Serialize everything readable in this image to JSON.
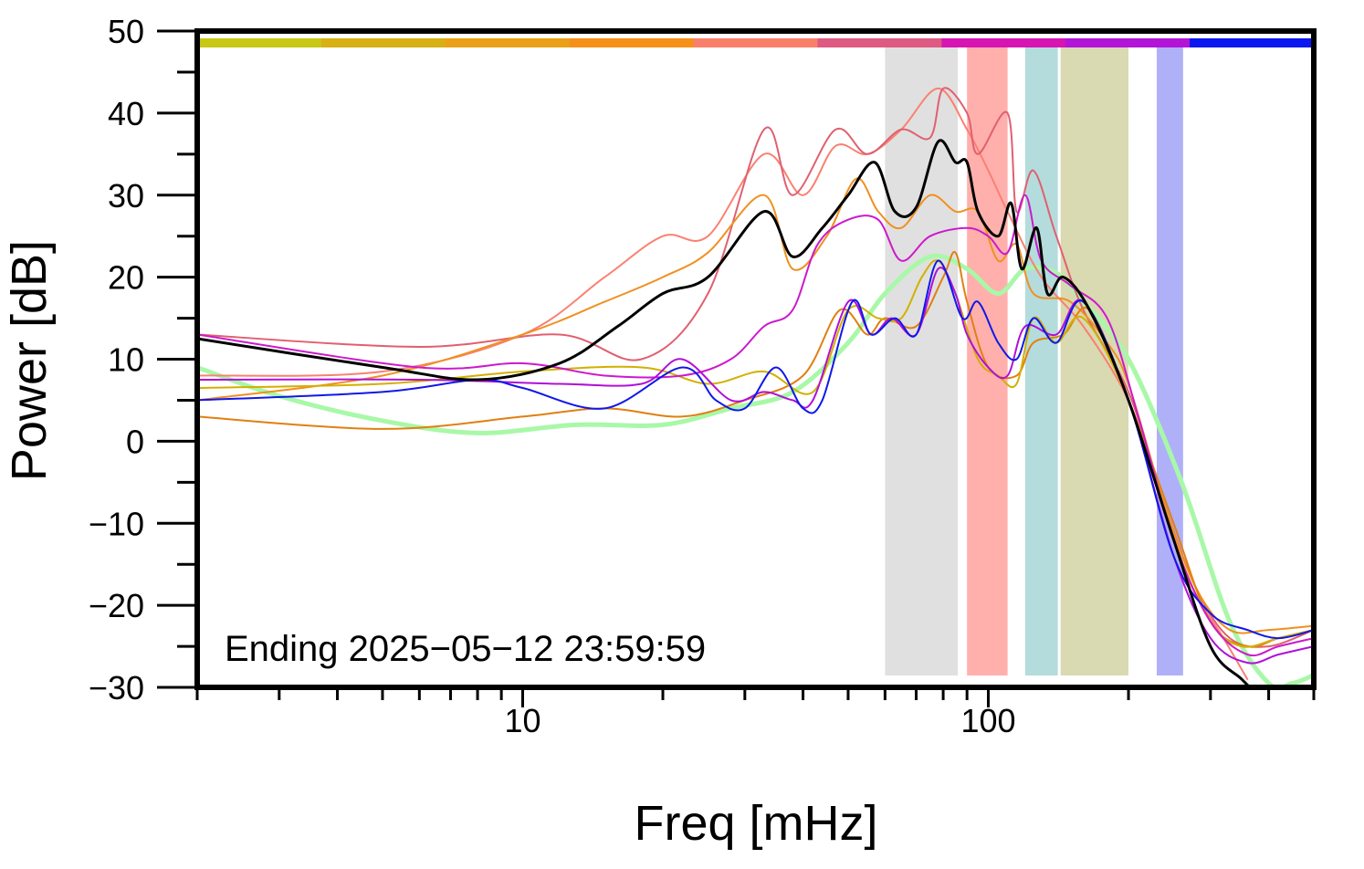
{
  "chart_data": {
    "type": "line",
    "xlabel": "Freq [mHz]",
    "ylabel": "Power [dB]",
    "x_scale": "log",
    "xlim": [
      2,
      500
    ],
    "ylim": [
      -30,
      50
    ],
    "x_tick_labels": [
      {
        "value": 10,
        "label": "10"
      },
      {
        "value": 100,
        "label": "100"
      }
    ],
    "y_ticks": [
      -30,
      -20,
      -10,
      0,
      10,
      20,
      30,
      40,
      50
    ],
    "y_tick_labels": [
      "−30",
      "−20",
      "−10",
      "0",
      "10",
      "20",
      "30",
      "40",
      "50"
    ],
    "annotation": "Ending 2025−05−12 23:59:59",
    "legend": "none",
    "grid": false,
    "color_bar": [
      "#c8c815",
      "#d7b014",
      "#eaa117",
      "#f6901a",
      "#fa7f6a",
      "#de5a82",
      "#d715b2",
      "#b215d7",
      "#0b18f0"
    ],
    "bands": [
      {
        "x0": 60,
        "x1": 86,
        "color": "#e0e0e0"
      },
      {
        "x0": 90,
        "x1": 110,
        "color": "#ffb0ac"
      },
      {
        "x0": 120,
        "x1": 141,
        "color": "#b4dcdc"
      },
      {
        "x0": 143,
        "x1": 200,
        "color": "#d9d9b2"
      },
      {
        "x0": 230,
        "x1": 262,
        "color": "#b0b0f8"
      }
    ],
    "series": [
      {
        "color": "#a8f8a8",
        "width": 5,
        "points": [
          [
            2,
            9
          ],
          [
            3,
            5.5
          ],
          [
            5,
            2.5
          ],
          [
            8,
            1
          ],
          [
            13,
            2
          ],
          [
            20,
            2
          ],
          [
            28,
            4
          ],
          [
            38,
            6
          ],
          [
            50,
            12
          ],
          [
            60,
            18
          ],
          [
            75,
            22.5
          ],
          [
            90,
            21
          ],
          [
            105,
            18
          ],
          [
            120,
            21
          ],
          [
            140,
            20.5
          ],
          [
            160,
            17
          ],
          [
            200,
            10
          ],
          [
            260,
            -5
          ],
          [
            330,
            -22
          ],
          [
            400,
            -29.5
          ],
          [
            450,
            -29.5
          ],
          [
            500,
            -28.5
          ]
        ]
      },
      {
        "color": "#fa8072",
        "width": 2,
        "points": [
          [
            2,
            8
          ],
          [
            5,
            8.5
          ],
          [
            10,
            13
          ],
          [
            15,
            20
          ],
          [
            20,
            25
          ],
          [
            25,
            25
          ],
          [
            33,
            35
          ],
          [
            40,
            30
          ],
          [
            47,
            36
          ],
          [
            55,
            35
          ],
          [
            65,
            38
          ],
          [
            78,
            43
          ],
          [
            90,
            38
          ],
          [
            100,
            33
          ],
          [
            110,
            28
          ],
          [
            130,
            20
          ],
          [
            160,
            14
          ],
          [
            200,
            5
          ],
          [
            230,
            -5
          ],
          [
            270,
            -17
          ],
          [
            320,
            -24
          ],
          [
            360,
            -29
          ]
        ]
      },
      {
        "color": "#e06070",
        "width": 2,
        "points": [
          [
            2,
            13
          ],
          [
            6,
            11.5
          ],
          [
            12,
            13
          ],
          [
            18,
            10
          ],
          [
            25,
            18
          ],
          [
            33,
            38
          ],
          [
            38,
            30
          ],
          [
            47,
            38
          ],
          [
            55,
            35
          ],
          [
            65,
            38
          ],
          [
            75,
            37
          ],
          [
            80,
            43
          ],
          [
            90,
            40
          ],
          [
            95,
            35
          ],
          [
            110,
            40
          ],
          [
            115,
            28
          ],
          [
            125,
            33
          ],
          [
            140,
            25
          ],
          [
            160,
            16
          ],
          [
            200,
            6
          ],
          [
            240,
            -8
          ],
          [
            280,
            -18
          ],
          [
            330,
            -24
          ],
          [
            400,
            -25
          ],
          [
            500,
            -23
          ]
        ]
      },
      {
        "color": "#f09020",
        "width": 2,
        "points": [
          [
            2,
            5
          ],
          [
            5,
            8
          ],
          [
            10,
            13
          ],
          [
            15,
            17
          ],
          [
            20,
            20
          ],
          [
            25,
            23
          ],
          [
            33,
            30
          ],
          [
            38,
            21
          ],
          [
            45,
            25
          ],
          [
            52,
            32
          ],
          [
            58,
            28
          ],
          [
            65,
            26
          ],
          [
            75,
            30
          ],
          [
            85,
            28
          ],
          [
            95,
            28
          ],
          [
            105,
            22
          ],
          [
            115,
            24
          ],
          [
            125,
            18
          ],
          [
            150,
            17
          ],
          [
            180,
            12
          ],
          [
            200,
            7
          ],
          [
            240,
            -8
          ],
          [
            280,
            -18
          ],
          [
            330,
            -23
          ],
          [
            400,
            -23
          ],
          [
            500,
            -22.5
          ]
        ]
      },
      {
        "color": "#e08010",
        "width": 2,
        "points": [
          [
            2,
            3
          ],
          [
            5,
            1.5
          ],
          [
            10,
            3
          ],
          [
            15,
            4
          ],
          [
            22,
            3
          ],
          [
            30,
            5
          ],
          [
            40,
            8
          ],
          [
            48,
            16
          ],
          [
            55,
            13
          ],
          [
            60,
            15
          ],
          [
            70,
            14
          ],
          [
            80,
            20
          ],
          [
            85,
            23
          ],
          [
            90,
            17
          ],
          [
            100,
            9
          ],
          [
            115,
            8
          ],
          [
            125,
            12
          ],
          [
            145,
            13
          ],
          [
            165,
            16
          ],
          [
            200,
            5
          ],
          [
            250,
            -10
          ],
          [
            300,
            -22
          ],
          [
            360,
            -25
          ],
          [
            420,
            -24
          ],
          [
            500,
            -23
          ]
        ]
      },
      {
        "color": "#d2b000",
        "width": 2,
        "points": [
          [
            2,
            6.5
          ],
          [
            5,
            7
          ],
          [
            10,
            8.5
          ],
          [
            18,
            9
          ],
          [
            25,
            7
          ],
          [
            33,
            8.5
          ],
          [
            42,
            6
          ],
          [
            50,
            16
          ],
          [
            58,
            15
          ],
          [
            65,
            15
          ],
          [
            72,
            20
          ],
          [
            78,
            22
          ],
          [
            85,
            18
          ],
          [
            95,
            10
          ],
          [
            105,
            8
          ],
          [
            115,
            7
          ],
          [
            125,
            15
          ],
          [
            140,
            12
          ],
          [
            160,
            15
          ],
          [
            200,
            5
          ],
          [
            250,
            -12
          ],
          [
            300,
            -22
          ],
          [
            350,
            -25
          ],
          [
            420,
            -24
          ],
          [
            500,
            -23
          ]
        ]
      },
      {
        "color": "#cc1acc",
        "width": 2,
        "points": [
          [
            2,
            13
          ],
          [
            6,
            9
          ],
          [
            10,
            9.5
          ],
          [
            15,
            8
          ],
          [
            22,
            8
          ],
          [
            28,
            10
          ],
          [
            33,
            14
          ],
          [
            38,
            16
          ],
          [
            43,
            24
          ],
          [
            50,
            27
          ],
          [
            58,
            27
          ],
          [
            65,
            22
          ],
          [
            75,
            25
          ],
          [
            90,
            26
          ],
          [
            100,
            25
          ],
          [
            110,
            23
          ],
          [
            120,
            30
          ],
          [
            130,
            22
          ],
          [
            150,
            19
          ],
          [
            180,
            15
          ],
          [
            210,
            3
          ],
          [
            250,
            -12
          ],
          [
            300,
            -22
          ],
          [
            360,
            -26
          ],
          [
            420,
            -25
          ],
          [
            500,
            -24
          ]
        ]
      },
      {
        "color": "#b010d8",
        "width": 2,
        "points": [
          [
            2,
            7.5
          ],
          [
            6,
            7.5
          ],
          [
            12,
            7
          ],
          [
            18,
            7
          ],
          [
            22,
            10
          ],
          [
            28,
            5
          ],
          [
            33,
            6
          ],
          [
            38,
            5
          ],
          [
            42,
            5
          ],
          [
            50,
            17
          ],
          [
            56,
            13
          ],
          [
            62,
            15
          ],
          [
            70,
            13
          ],
          [
            78,
            21
          ],
          [
            85,
            18
          ],
          [
            90,
            13
          ],
          [
            100,
            9
          ],
          [
            110,
            8
          ],
          [
            120,
            14
          ],
          [
            140,
            13
          ],
          [
            160,
            17
          ],
          [
            200,
            5
          ],
          [
            250,
            -14
          ],
          [
            300,
            -24
          ],
          [
            360,
            -27
          ],
          [
            420,
            -26
          ],
          [
            500,
            -25
          ]
        ]
      },
      {
        "color": "#1018e8",
        "width": 2,
        "points": [
          [
            2,
            5
          ],
          [
            5,
            6
          ],
          [
            8,
            7.5
          ],
          [
            10,
            6.5
          ],
          [
            15,
            4
          ],
          [
            22,
            9
          ],
          [
            26,
            5
          ],
          [
            30,
            4
          ],
          [
            35,
            9
          ],
          [
            40,
            4
          ],
          [
            44,
            5
          ],
          [
            51,
            17
          ],
          [
            56,
            13
          ],
          [
            63,
            15
          ],
          [
            70,
            13
          ],
          [
            78,
            22
          ],
          [
            88,
            15
          ],
          [
            95,
            17
          ],
          [
            105,
            12
          ],
          [
            115,
            10
          ],
          [
            125,
            15
          ],
          [
            140,
            12
          ],
          [
            160,
            17
          ],
          [
            200,
            5
          ],
          [
            250,
            -14
          ],
          [
            300,
            -21
          ],
          [
            360,
            -23
          ],
          [
            420,
            -24
          ],
          [
            500,
            -23
          ]
        ]
      },
      {
        "color": "#000000",
        "width": 3,
        "points": [
          [
            2,
            12.5
          ],
          [
            5,
            9
          ],
          [
            8,
            7.5
          ],
          [
            12,
            9.5
          ],
          [
            16,
            14
          ],
          [
            20,
            18
          ],
          [
            25,
            20
          ],
          [
            33,
            28
          ],
          [
            38,
            22.5
          ],
          [
            44,
            26
          ],
          [
            50,
            30
          ],
          [
            57,
            34
          ],
          [
            63,
            28
          ],
          [
            70,
            28.5
          ],
          [
            78,
            36.5
          ],
          [
            85,
            34
          ],
          [
            90,
            34
          ],
          [
            95,
            28
          ],
          [
            105,
            25
          ],
          [
            112,
            29
          ],
          [
            118,
            21
          ],
          [
            127,
            26
          ],
          [
            134,
            18
          ],
          [
            145,
            20
          ],
          [
            165,
            16
          ],
          [
            200,
            5
          ],
          [
            250,
            -12
          ],
          [
            300,
            -25
          ],
          [
            350,
            -29
          ],
          [
            380,
            -31
          ]
        ]
      }
    ]
  }
}
